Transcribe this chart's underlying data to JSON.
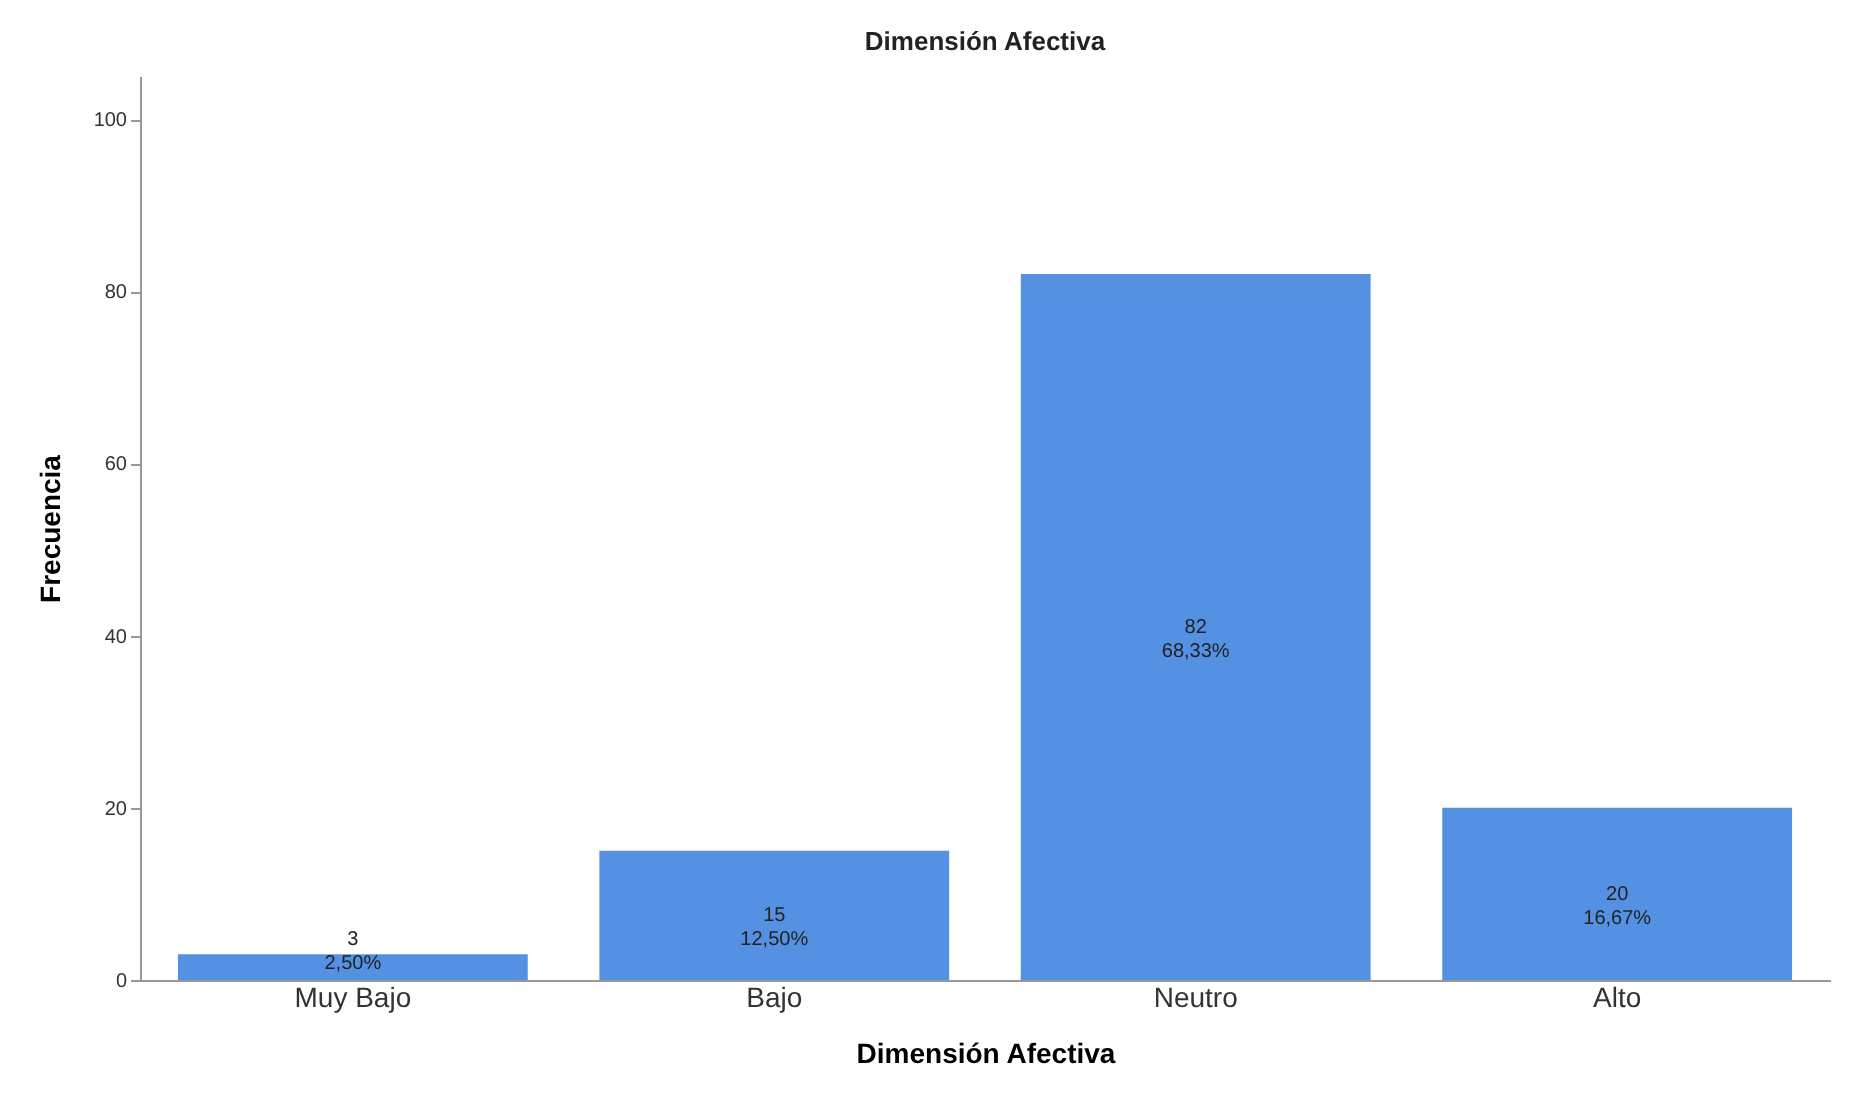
{
  "chart_data": {
    "type": "bar",
    "title": "Dimensión Afectiva",
    "xlabel": "Dimensión Afectiva",
    "ylabel": "Frecuencia",
    "categories": [
      "Muy Bajo",
      "Bajo",
      "Neutro",
      "Alto"
    ],
    "values": [
      3,
      15,
      82,
      20
    ],
    "value_labels": [
      "3\n2,50%",
      "15\n12,50%",
      "82\n68,33%",
      "20\n16,67%"
    ],
    "color": "#5591e3",
    "ylim": [
      0,
      105
    ],
    "yticks": [
      0,
      20,
      40,
      60,
      80,
      100
    ],
    "grid": false
  }
}
